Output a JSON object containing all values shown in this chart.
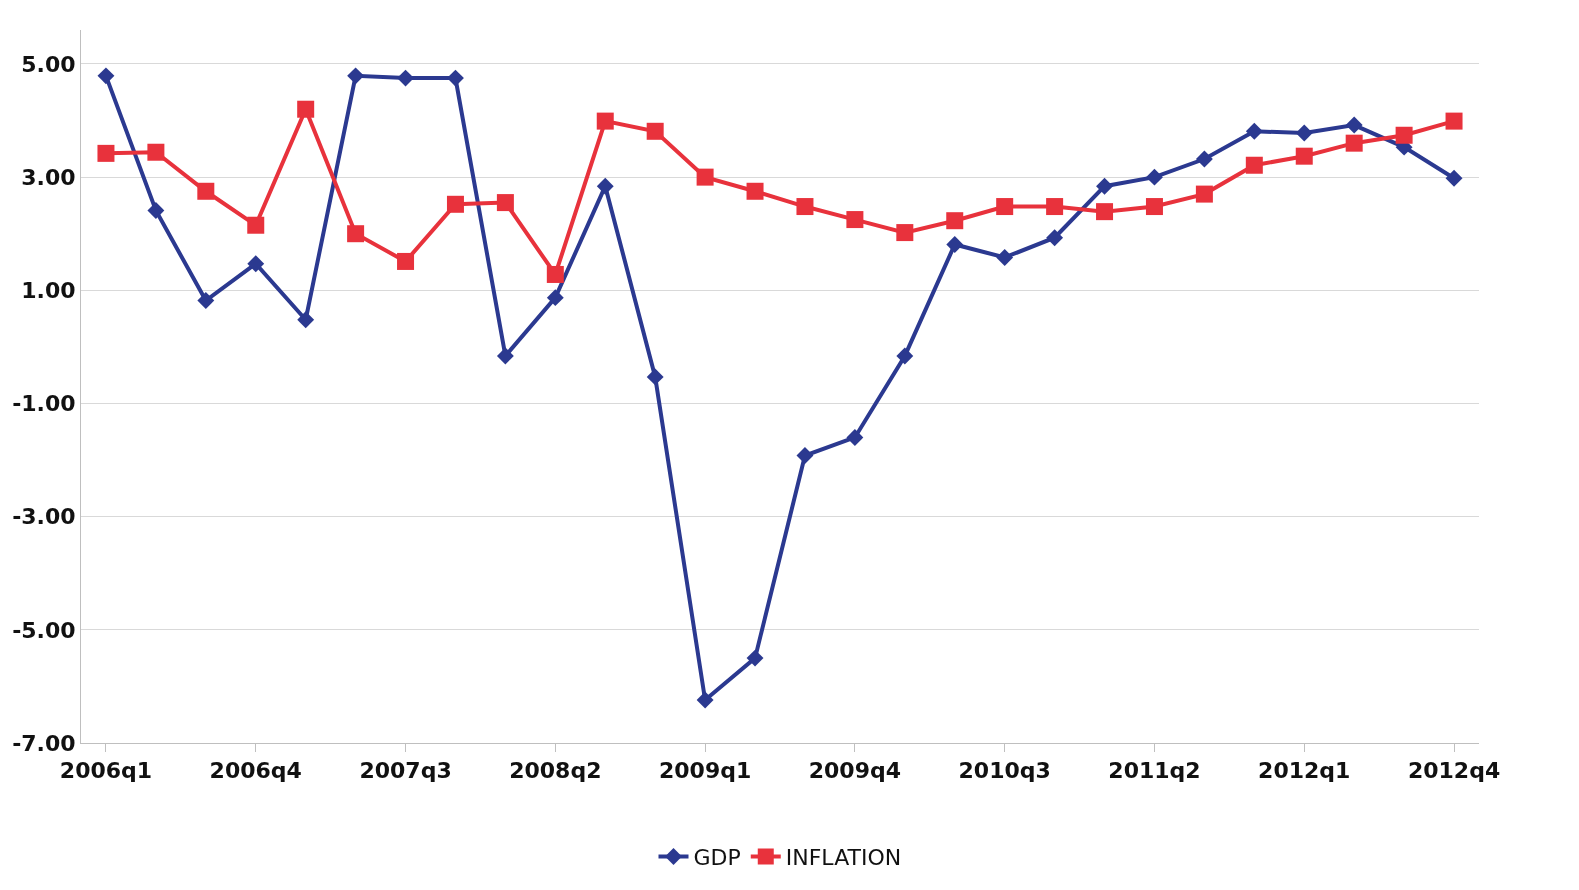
{
  "chart_data": {
    "type": "line",
    "categories": [
      "2006q1",
      null,
      null,
      "2006q4",
      null,
      null,
      "2007q3",
      null,
      null,
      "2008q2",
      null,
      null,
      "2009q1",
      null,
      null,
      "2009q4",
      null,
      null,
      "2010q3",
      null,
      null,
      "2011q2",
      null,
      null,
      "2012q1",
      null,
      null,
      "2012q4"
    ],
    "series": [
      {
        "name": "GDP",
        "color": "#2b3990",
        "marker": "diamond",
        "values": [
          4.79,
          2.41,
          0.82,
          1.47,
          0.48,
          4.79,
          4.75,
          4.75,
          -0.16,
          0.87,
          2.84,
          -0.53,
          -6.24,
          -5.5,
          -1.92,
          -1.6,
          -0.16,
          1.81,
          1.58,
          1.93,
          2.84,
          3.0,
          3.32,
          3.81,
          3.78,
          3.92,
          3.53,
          2.98
        ]
      },
      {
        "name": "INFLATION",
        "color": "#e8323c",
        "marker": "square",
        "values": [
          3.42,
          3.44,
          2.75,
          2.15,
          4.2,
          2.0,
          1.51,
          2.52,
          2.55,
          1.28,
          3.99,
          3.81,
          3.0,
          2.75,
          2.48,
          2.25,
          2.02,
          2.23,
          2.48,
          2.48,
          2.39,
          2.48,
          2.7,
          3.21,
          3.37,
          3.6,
          3.74,
          3.99
        ]
      }
    ],
    "ylim": [
      -7,
      5.6
    ],
    "yticks": [
      {
        "value": -7,
        "label": "-7.00"
      },
      {
        "value": -5,
        "label": "-5.00"
      },
      {
        "value": -3,
        "label": "-3.00"
      },
      {
        "value": -1,
        "label": "-1.00"
      },
      {
        "value": 1,
        "label": "1.00"
      },
      {
        "value": 3,
        "label": "3.00"
      },
      {
        "value": 5,
        "label": "5.00"
      }
    ],
    "grid": "y",
    "legend": "bottom",
    "line_style": "solid"
  }
}
